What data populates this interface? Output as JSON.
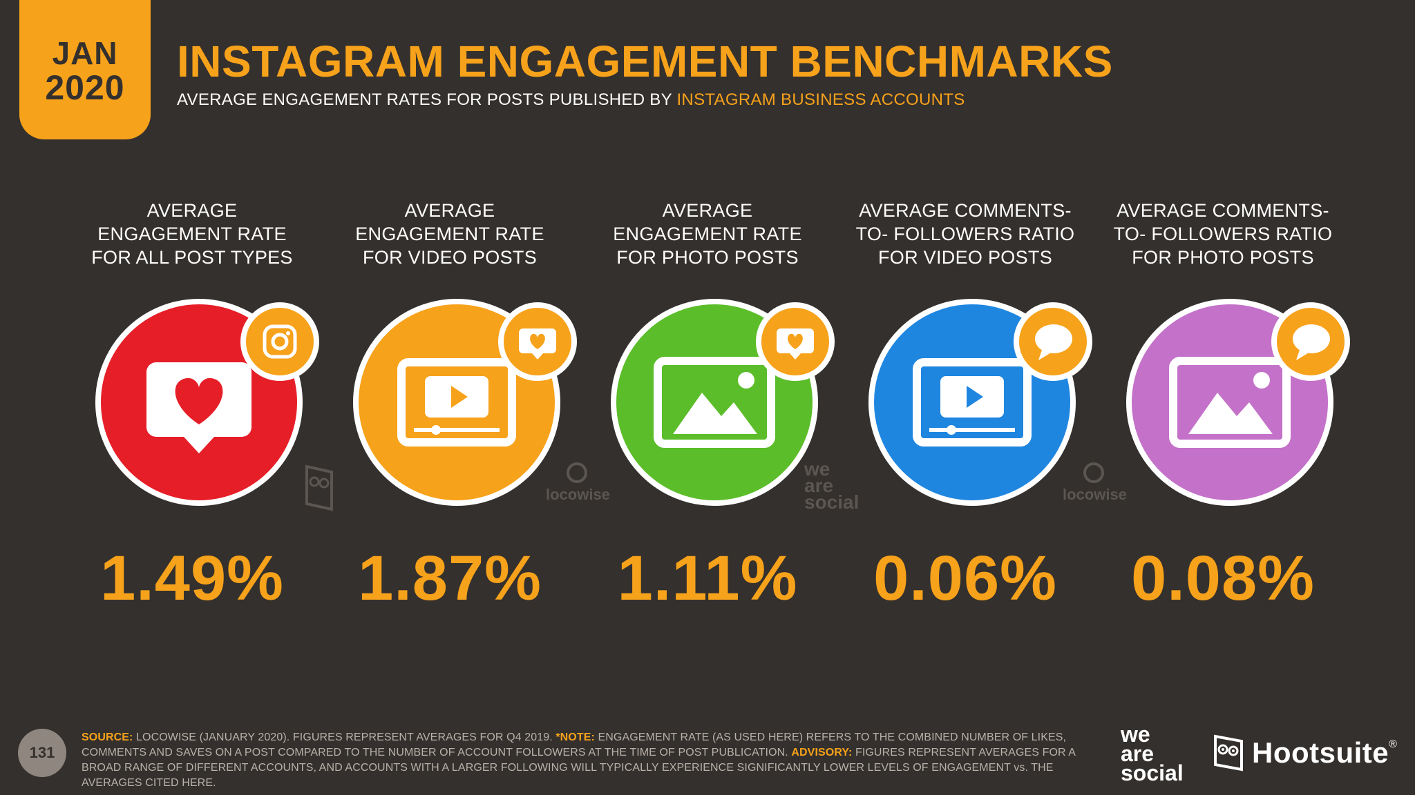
{
  "header": {
    "month": "JAN",
    "year": "2020",
    "title": "INSTAGRAM ENGAGEMENT BENCHMARKS",
    "subtitle_prefix": "AVERAGE ENGAGEMENT RATES FOR POSTS PUBLISHED BY ",
    "subtitle_highlight": "INSTAGRAM BUSINESS ACCOUNTS"
  },
  "metrics": [
    {
      "label_lines": [
        "AVERAGE",
        "ENGAGEMENT RATE",
        "FOR ALL POST TYPES"
      ],
      "value": "1.49%",
      "circle_color": "#e61e28",
      "icon": "heart-bubble-icon",
      "badge_icon": "instagram-icon"
    },
    {
      "label_lines": [
        "AVERAGE",
        "ENGAGEMENT RATE",
        "FOR VIDEO POSTS"
      ],
      "value": "1.87%",
      "circle_color": "#f7a21b",
      "icon": "video-player-icon",
      "badge_icon": "heart-bubble-icon"
    },
    {
      "label_lines": [
        "AVERAGE",
        "ENGAGEMENT RATE",
        "FOR PHOTO POSTS"
      ],
      "value": "1.11%",
      "circle_color": "#5bbd2a",
      "icon": "photo-icon",
      "badge_icon": "heart-bubble-icon"
    },
    {
      "label_lines": [
        "AVERAGE COMMENTS-",
        "TO- FOLLOWERS RATIO",
        "FOR VIDEO POSTS"
      ],
      "value": "0.06%",
      "circle_color": "#1f86e0",
      "icon": "video-player-icon",
      "badge_icon": "speech-bubble-icon"
    },
    {
      "label_lines": [
        "AVERAGE COMMENTS-",
        "TO- FOLLOWERS RATIO",
        "FOR PHOTO POSTS"
      ],
      "value": "0.08%",
      "circle_color": "#c471c9",
      "icon": "photo-icon",
      "badge_icon": "speech-bubble-icon"
    }
  ],
  "watermarks": {
    "locowise_1": "locowise",
    "locowise_2": "locowise",
    "was_line1": "we",
    "was_line2": "are",
    "was_line3": "social"
  },
  "footer": {
    "page_number": "131",
    "source_label": "SOURCE:",
    "source_text": " LOCOWISE (JANUARY 2020). FIGURES REPRESENT AVERAGES FOR Q4 2019. ",
    "note_label": "*NOTE:",
    "note_text": " ENGAGEMENT RATE (AS USED HERE) REFERS TO THE COMBINED NUMBER OF LIKES, COMMENTS AND SAVES ON A POST COMPARED TO THE NUMBER OF ACCOUNT FOLLOWERS AT THE TIME OF POST PUBLICATION. ",
    "advisory_label": "ADVISORY:",
    "advisory_text": " FIGURES REPRESENT AVERAGES FOR A BROAD RANGE OF DIFFERENT ACCOUNTS, AND ACCOUNTS WITH A LARGER FOLLOWING WILL TYPICALLY EXPERIENCE SIGNIFICANTLY LOWER LEVELS OF ENGAGEMENT vs. THE AVERAGES CITED HERE.",
    "logo_was_1": "we",
    "logo_was_2": "are",
    "logo_was_3": "social",
    "logo_hootsuite": "Hootsuite",
    "logo_hootsuite_mark": "®"
  }
}
